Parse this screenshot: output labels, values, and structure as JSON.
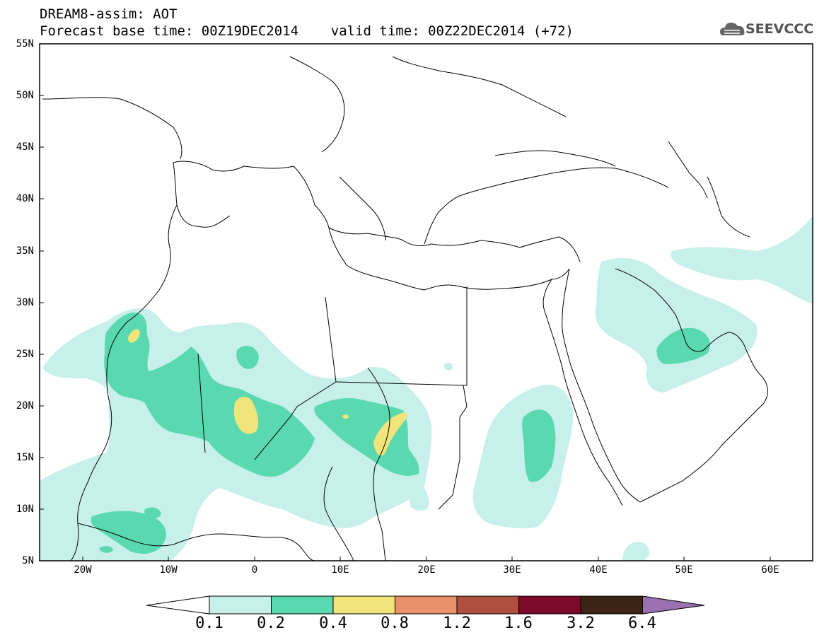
{
  "header": {
    "title_line1": "DREAM8-assim: AOT",
    "title_line2": "Forecast base time: 00Z19DEC2014    valid time: 00Z22DEC2014 (+72)",
    "logo_text": "SEEVCCC"
  },
  "map": {
    "variable": "AOT",
    "projection": "cylindrical-equidistant",
    "lon_range": [
      -25,
      65
    ],
    "lat_range": [
      5,
      55
    ],
    "lat_labels": [
      "55N",
      "50N",
      "45N",
      "40N",
      "35N",
      "30N",
      "25N",
      "20N",
      "15N",
      "10N",
      "5N"
    ],
    "lon_labels": [
      "20W",
      "10W",
      "0",
      "10E",
      "20E",
      "30E",
      "40E",
      "50E",
      "60E"
    ],
    "colors": {
      "level_0_1_0_2": "#c8f0ea",
      "level_0_2_0_4": "#5ad9b0",
      "level_0_4_0_8": "#f0e47a",
      "level_0_8_1_2": "#e8906a",
      "level_1_2_1_6": "#b0503e",
      "level_1_6_3_2": "#7a0a28",
      "level_3_2_6_4": "#3c2414",
      "level_above_6_4": "#9a70b0",
      "coastlines": "#000000"
    }
  },
  "colorbar": {
    "labels": [
      "0.1",
      "0.2",
      "0.4",
      "0.8",
      "1.2",
      "1.6",
      "3.2",
      "6.4"
    ],
    "colors": [
      "#ffffff",
      "#c8f0ea",
      "#5ad9b0",
      "#f0e47a",
      "#e8906a",
      "#b0503e",
      "#7a0a28",
      "#3c2414",
      "#9a70b0"
    ]
  }
}
